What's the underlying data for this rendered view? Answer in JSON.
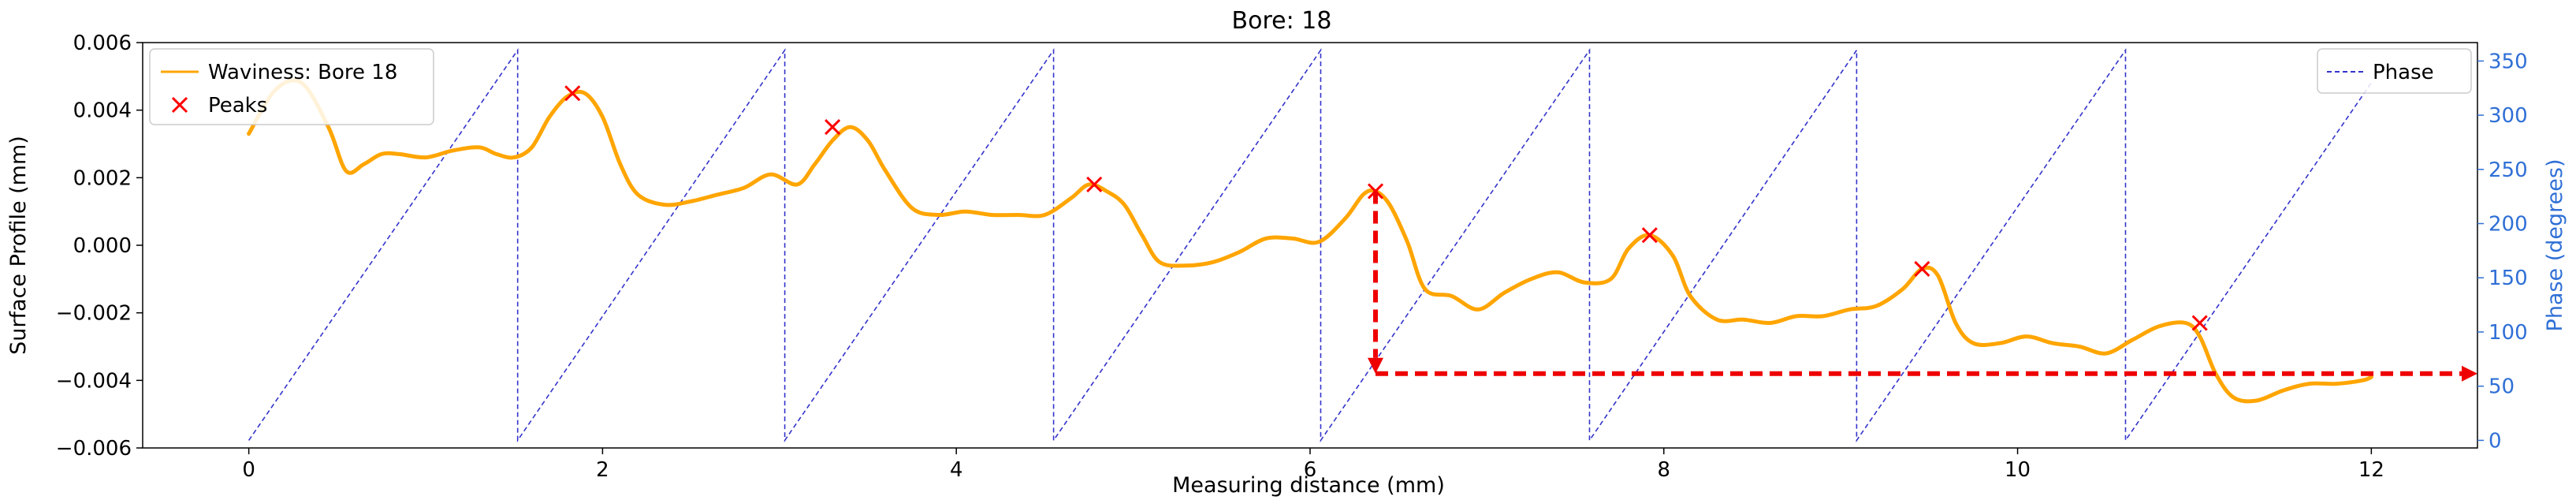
{
  "chart_data": {
    "type": "line",
    "title": "Bore: 18",
    "xlabel": "Measuring distance (mm)",
    "ylabel": "Surface Profile (mm)",
    "y2label": "Phase (degrees)",
    "xlim": [
      -0.6,
      12.6
    ],
    "ylim": [
      -0.006,
      0.006
    ],
    "y2lim": [
      -7,
      367
    ],
    "x_ticks": [
      "0",
      "2",
      "4",
      "6",
      "8",
      "10",
      "12"
    ],
    "x_tick_values": [
      0,
      2,
      4,
      6,
      8,
      10,
      12
    ],
    "y_ticks": [
      "0.006",
      "0.004",
      "0.002",
      "0.000",
      "−0.002",
      "−0.004",
      "−0.006"
    ],
    "y_tick_values": [
      0.006,
      0.004,
      0.002,
      0.0,
      -0.002,
      -0.004,
      -0.006
    ],
    "y2_ticks": [
      "0",
      "50",
      "100",
      "150",
      "200",
      "250",
      "300",
      "350"
    ],
    "y2_tick_values": [
      0,
      50,
      100,
      150,
      200,
      250,
      300,
      350
    ],
    "colors": {
      "waviness": "#FFA500",
      "peaks": "#FF0000",
      "phase": "#3333CC",
      "arrow": "#EE0000",
      "right_axis": "#2f6fd6"
    },
    "legend_left": {
      "placement": "upper-left",
      "entries": [
        "Waviness: Bore 18",
        "Peaks"
      ]
    },
    "legend_right": {
      "placement": "upper-right",
      "entries": [
        "Phase"
      ]
    },
    "series": [
      {
        "name": "Waviness: Bore 18",
        "style": "solid",
        "axis": "left",
        "x": [
          0.0,
          0.15,
          0.3,
          0.45,
          0.55,
          0.65,
          0.75,
          0.85,
          1.0,
          1.15,
          1.3,
          1.4,
          1.5,
          1.6,
          1.7,
          1.8,
          1.9,
          2.0,
          2.1,
          2.2,
          2.35,
          2.5,
          2.65,
          2.8,
          2.95,
          3.1,
          3.2,
          3.3,
          3.4,
          3.5,
          3.6,
          3.75,
          3.9,
          4.05,
          4.2,
          4.35,
          4.5,
          4.65,
          4.75,
          4.85,
          4.95,
          5.05,
          5.15,
          5.3,
          5.45,
          5.6,
          5.75,
          5.9,
          6.05,
          6.2,
          6.3,
          6.37,
          6.45,
          6.55,
          6.65,
          6.8,
          6.95,
          7.1,
          7.25,
          7.4,
          7.55,
          7.7,
          7.8,
          7.92,
          8.05,
          8.15,
          8.3,
          8.45,
          8.6,
          8.75,
          8.9,
          9.05,
          9.2,
          9.35,
          9.46,
          9.55,
          9.65,
          9.75,
          9.9,
          10.05,
          10.2,
          10.35,
          10.5,
          10.65,
          10.8,
          10.95,
          11.03,
          11.12,
          11.22,
          11.35,
          11.5,
          11.65,
          11.8,
          11.95,
          12.0
        ],
        "y": [
          0.0033,
          0.0046,
          0.0048,
          0.0035,
          0.0022,
          0.0024,
          0.0027,
          0.0027,
          0.0026,
          0.0028,
          0.0029,
          0.0027,
          0.0026,
          0.0029,
          0.0038,
          0.0044,
          0.0045,
          0.0038,
          0.0024,
          0.0015,
          0.0012,
          0.0013,
          0.0015,
          0.0017,
          0.0021,
          0.0018,
          0.0024,
          0.0031,
          0.0035,
          0.0031,
          0.0022,
          0.0011,
          0.0009,
          0.001,
          0.0009,
          0.0009,
          0.0009,
          0.0014,
          0.0018,
          0.0016,
          0.0012,
          0.0003,
          -0.0005,
          -0.0006,
          -0.0005,
          -0.0002,
          0.0002,
          0.0002,
          0.0001,
          0.0008,
          0.0015,
          0.0016,
          0.0012,
          0.0001,
          -0.0013,
          -0.0015,
          -0.0019,
          -0.0014,
          -0.001,
          -0.0008,
          -0.0011,
          -0.001,
          -0.0001,
          0.0003,
          -0.0003,
          -0.0015,
          -0.0022,
          -0.0022,
          -0.0023,
          -0.0021,
          -0.0021,
          -0.0019,
          -0.0018,
          -0.0013,
          -0.0007,
          -0.0009,
          -0.0023,
          -0.0029,
          -0.0029,
          -0.0027,
          -0.0029,
          -0.003,
          -0.0032,
          -0.0028,
          -0.0024,
          -0.0023,
          -0.0027,
          -0.0038,
          -0.0045,
          -0.0046,
          -0.0043,
          -0.0041,
          -0.0041,
          -0.004,
          -0.0039
        ]
      },
      {
        "name": "Peaks",
        "style": "x-marker",
        "axis": "left",
        "x": [
          1.83,
          3.3,
          4.78,
          6.37,
          7.92,
          9.46,
          11.03
        ],
        "y": [
          0.0045,
          0.0035,
          0.0018,
          0.0016,
          0.0003,
          -0.0007,
          -0.0023
        ]
      },
      {
        "name": "Phase",
        "style": "dashed",
        "axis": "right",
        "x": [
          0.0,
          1.52,
          1.52,
          3.03,
          3.03,
          4.55,
          4.55,
          6.06,
          6.06,
          7.58,
          7.58,
          9.09,
          9.09,
          10.61,
          10.61,
          12.0
        ],
        "y": [
          0,
          360,
          0,
          360,
          0,
          360,
          0,
          360,
          0,
          360,
          0,
          360,
          0,
          360,
          0,
          330
        ]
      }
    ],
    "annotation_arrows": [
      {
        "from": [
          6.37,
          0.0016
        ],
        "to": [
          6.37,
          -0.0038
        ]
      },
      {
        "from": [
          6.37,
          -0.0038
        ],
        "to": [
          12.6,
          -0.0038
        ]
      }
    ]
  }
}
